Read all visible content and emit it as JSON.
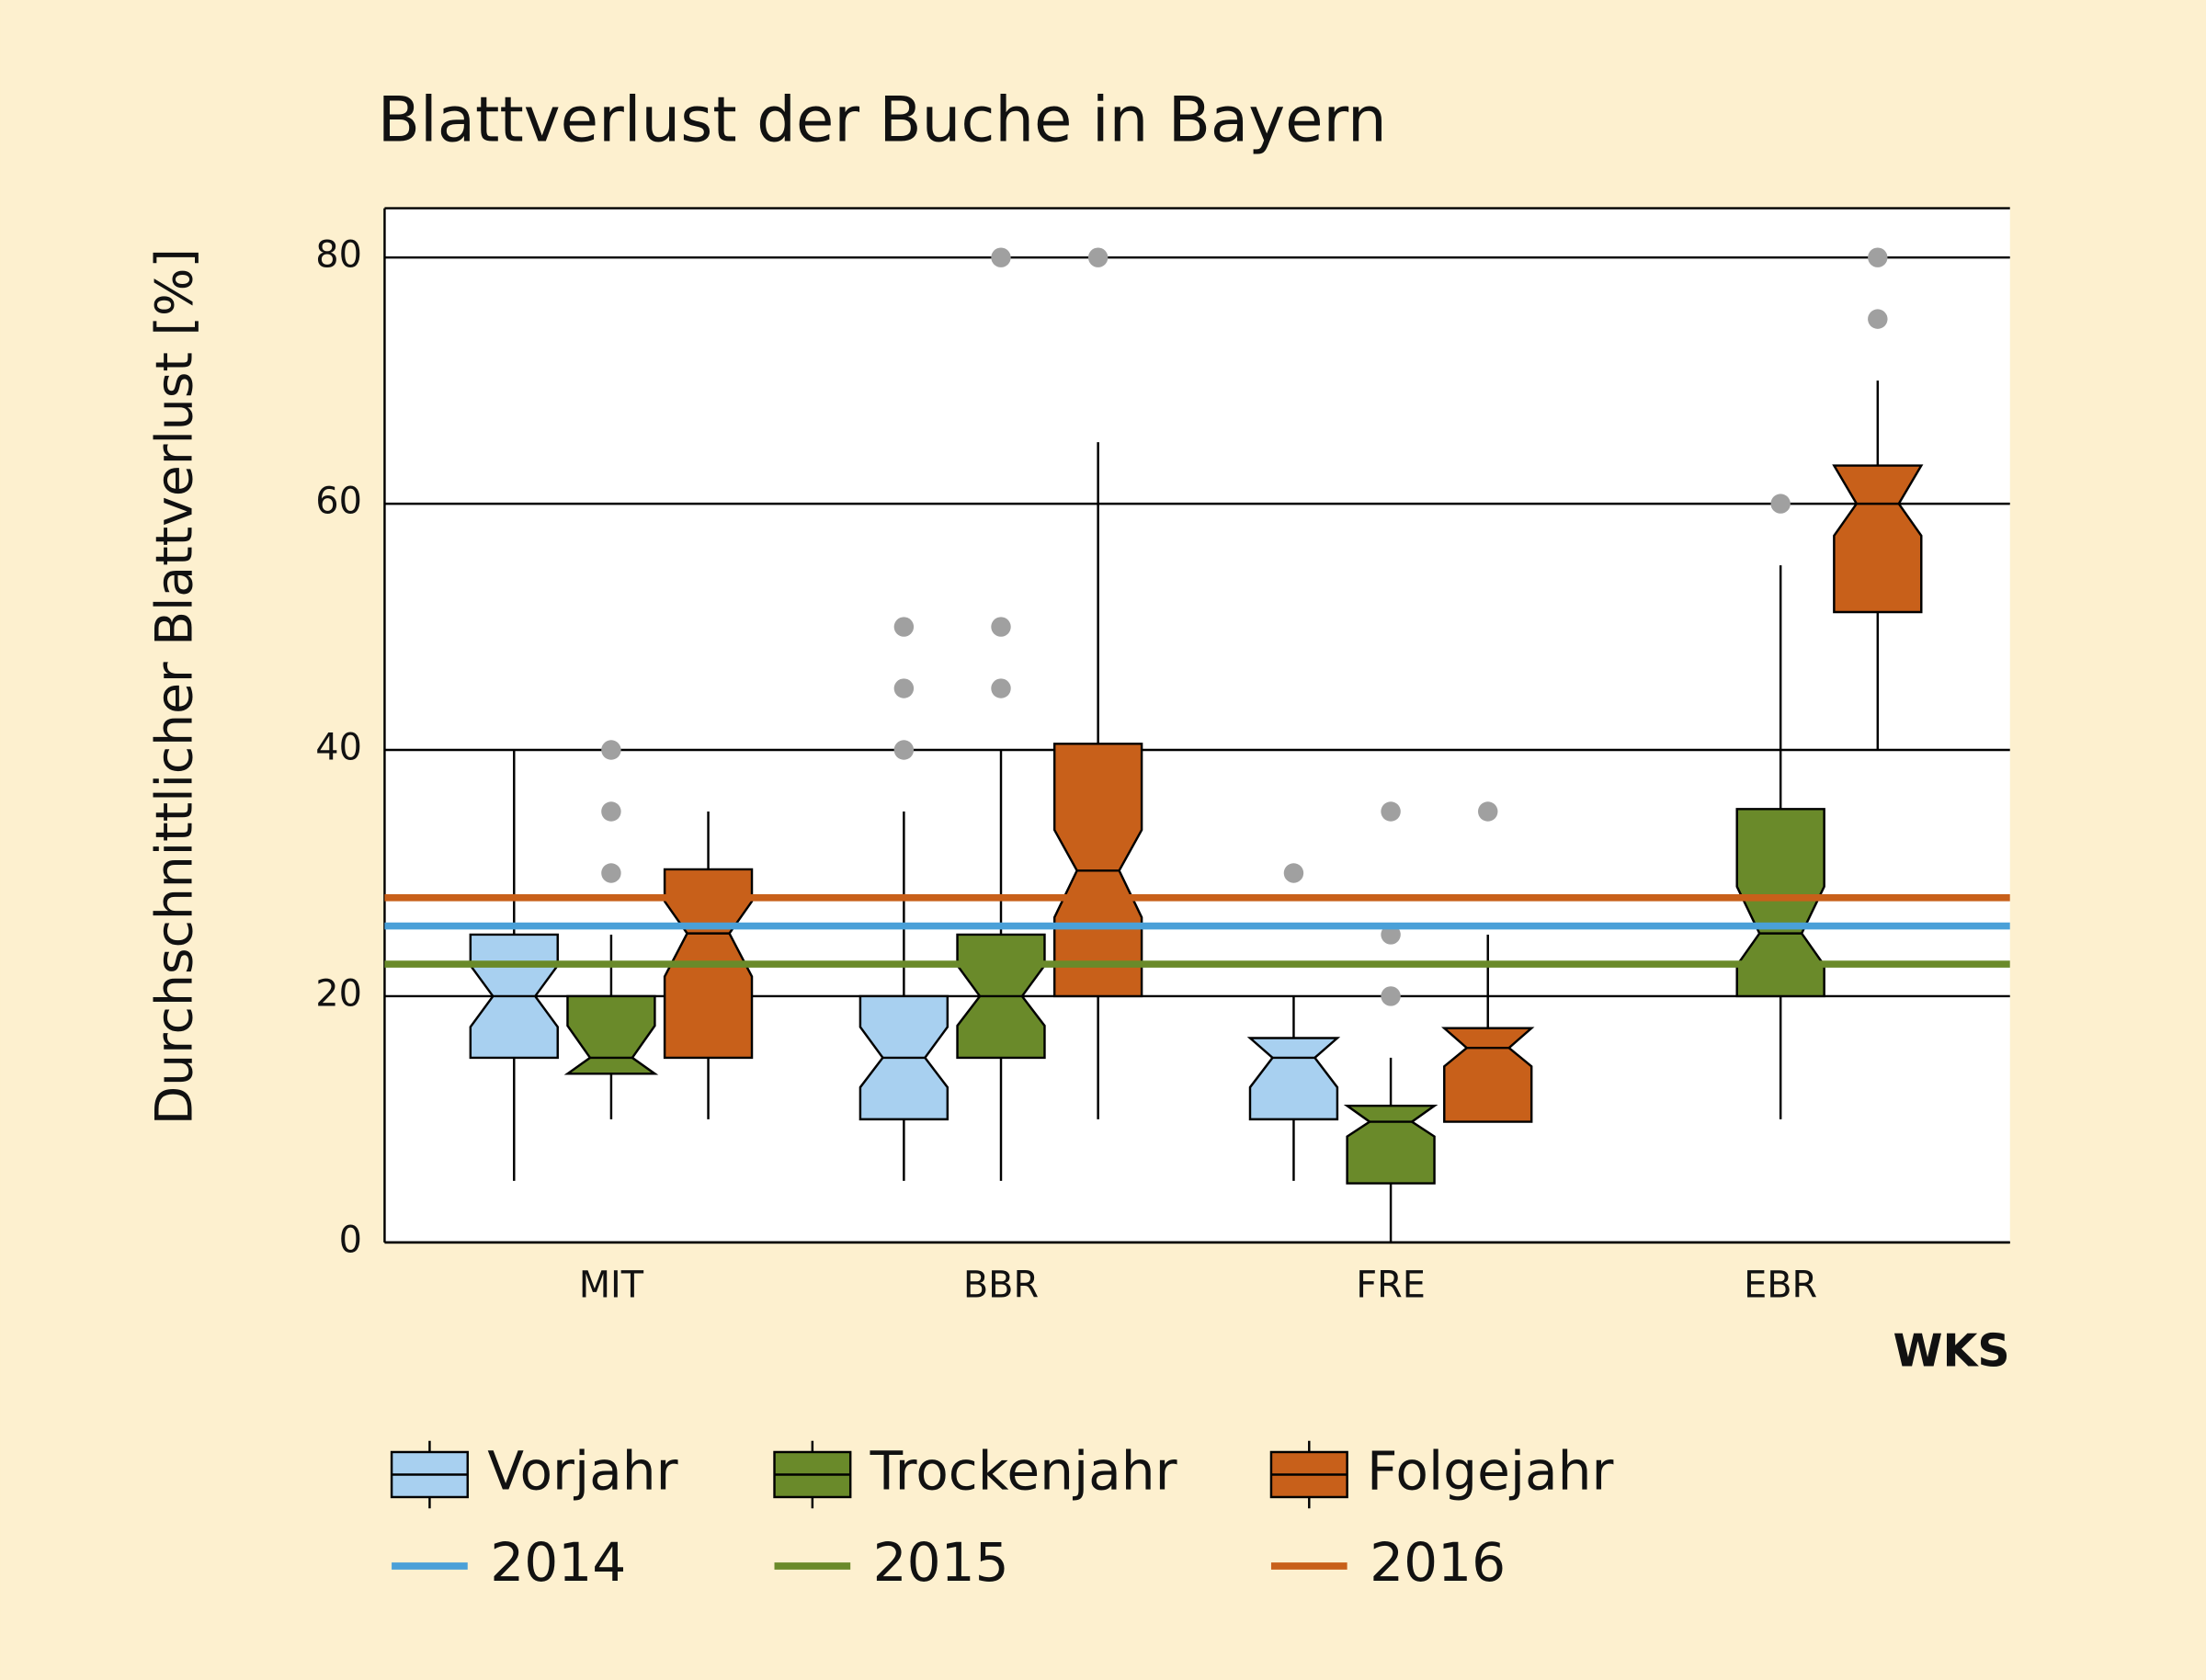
{
  "chart_data": {
    "type": "box",
    "title": "Blattverlust der Buche in Bayern",
    "y_label": "Durchschnittlicher Blattverlust [%]",
    "x_label": "WKS",
    "categories": [
      "MIT",
      "BBR",
      "FRE",
      "EBR"
    ],
    "ylim": [
      0,
      84
    ],
    "yticks": [
      0,
      20,
      40,
      60,
      80
    ],
    "grid": true,
    "series": [
      {
        "name": "Vorjahr",
        "color": "#a8d0f0",
        "values": [
          {
            "whislo": 5,
            "q1": 15,
            "notch_lo": 17.5,
            "med": 20,
            "notch_hi": 22.5,
            "q3": 25,
            "whishi": 40,
            "outliers": []
          },
          {
            "whislo": 5,
            "q1": 10,
            "notch_lo": 12.6,
            "med": 15,
            "notch_hi": 17.5,
            "q3": 20,
            "whishi": 35,
            "outliers": [
              40,
              45,
              50
            ]
          },
          {
            "whislo": 5,
            "q1": 10,
            "notch_lo": 12.6,
            "med": 15,
            "notch_hi": 16.6,
            "q3": 16.6,
            "whishi": 20,
            "outliers": [
              30
            ]
          },
          null
        ]
      },
      {
        "name": "Trockenjahr",
        "color": "#6a8a2a",
        "values": [
          {
            "whislo": 10,
            "q1": 13.7,
            "notch_lo": 13.7,
            "med": 15,
            "notch_hi": 17.6,
            "q3": 20,
            "whishi": 25,
            "outliers": [
              30,
              35,
              40
            ]
          },
          {
            "whislo": 5,
            "q1": 15,
            "notch_lo": 17.6,
            "med": 20,
            "notch_hi": 22.5,
            "q3": 25,
            "whishi": 40,
            "outliers": [
              45,
              50,
              80
            ]
          },
          {
            "whislo": 0,
            "q1": 4.8,
            "notch_lo": 8.6,
            "med": 9.8,
            "notch_hi": 11.1,
            "q3": 11.1,
            "whishi": 15,
            "outliers": [
              20,
              25,
              35
            ]
          },
          {
            "whislo": 10,
            "q1": 20,
            "notch_lo": 22.5,
            "med": 25.1,
            "notch_hi": 28.9,
            "q3": 35.2,
            "whishi": 55,
            "outliers": [
              60
            ]
          }
        ]
      },
      {
        "name": "Folgejahr",
        "color": "#c8601a",
        "values": [
          {
            "whislo": 10,
            "q1": 15,
            "notch_lo": 21.6,
            "med": 25.1,
            "notch_hi": 27.7,
            "q3": 30.3,
            "whishi": 35,
            "outliers": []
          },
          {
            "whislo": 10,
            "q1": 20,
            "notch_lo": 26.4,
            "med": 30.2,
            "notch_hi": 33.5,
            "q3": 40.5,
            "whishi": 65,
            "outliers": [
              80
            ]
          },
          {
            "whislo": 9.8,
            "q1": 9.8,
            "notch_lo": 14.3,
            "med": 15.8,
            "notch_hi": 17.4,
            "q3": 17.4,
            "whishi": 25,
            "outliers": [
              35
            ]
          },
          {
            "whislo": 40,
            "q1": 51.2,
            "notch_lo": 57.4,
            "med": 60,
            "notch_hi": 63.1,
            "q3": 63.1,
            "whishi": 70,
            "outliers": [
              75,
              80
            ]
          }
        ]
      }
    ],
    "reference_lines": [
      {
        "name": "2014",
        "value": 25.7,
        "color": "#4aa0d8"
      },
      {
        "name": "2015",
        "value": 22.6,
        "color": "#6a8a2a"
      },
      {
        "name": "2016",
        "value": 28,
        "color": "#c8601a"
      }
    ],
    "outlier_color": "#a0a0a0"
  }
}
